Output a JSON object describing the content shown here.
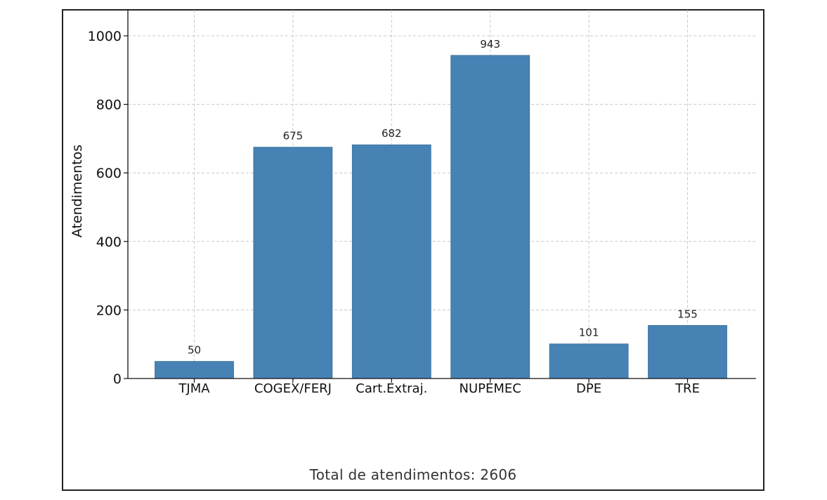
{
  "chart_data": {
    "type": "bar",
    "categories": [
      "TJMA",
      "COGEX/FERJ",
      "Cart.Extraj.",
      "NUPEMEC",
      "DPE",
      "TRE"
    ],
    "values": [
      50,
      675,
      682,
      943,
      101,
      155
    ],
    "data_labels": [
      "50",
      "675",
      "682",
      "943",
      "101",
      "155"
    ],
    "title": "",
    "xlabel": "",
    "ylabel": "Atendimentos",
    "ylim": [
      0,
      1075
    ],
    "yticks": [
      0,
      200,
      400,
      600,
      800,
      1000
    ],
    "grid": true,
    "legend": "none",
    "bar_color": "#4682b4"
  },
  "caption": "Total de atendimentos: 2606"
}
